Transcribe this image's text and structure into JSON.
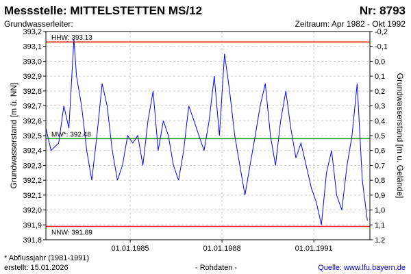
{
  "header": {
    "title": "Messstelle: MITTELSTETTEN MS/12",
    "number": "Nr: 8793",
    "aquifer": "Grundwasserleiter:",
    "period": "Zeitraum: Apr 1982 - Okt 1992"
  },
  "footer": {
    "footnote": "* Abflussjahr (1981-1991)",
    "created": "erstellt:  15.01.2026",
    "raw": "- Rohdaten -",
    "source": "Quelle:  www.lfu.bayern.de"
  },
  "chart_data": {
    "type": "line",
    "title": "",
    "ylabel": "Grundwasserstand [m ü. NN]",
    "y2label": "Grundwasserstand [m u. Gelände]",
    "ylim": [
      391.8,
      393.2
    ],
    "y2lim": [
      -0.2,
      1.2
    ],
    "xlim": [
      "1982-04-01",
      "1992-10-31"
    ],
    "x_ticks": [
      "01.01.1985",
      "01.01.1988",
      "01.01.1991"
    ],
    "y_ticks": [
      "391,8",
      "391,9",
      "392,0",
      "392,1",
      "392,2",
      "392,3",
      "392,4",
      "392,5",
      "392,6",
      "392,7",
      "392,8",
      "392,9",
      "393,0",
      "393,1",
      "393,2"
    ],
    "y2_ticks": [
      "1,2",
      "1,1",
      "1,0",
      "0,9",
      "0,8",
      "0,7",
      "0,6",
      "0,5",
      "0,4",
      "0,3",
      "0,2",
      "0,1",
      "0,0",
      "-0,1",
      "-0,2"
    ],
    "grid": true,
    "reference_lines": [
      {
        "label": "HHW: 393.13",
        "value": 393.13,
        "color": "#ff0000"
      },
      {
        "label": "MW*: 392.48",
        "value": 392.48,
        "color": "#00a000"
      },
      {
        "label": "NNW: 391.89",
        "value": 391.89,
        "color": "#ff0000"
      }
    ],
    "series": [
      {
        "color": "#0000ff",
        "x": [
          "1982-04",
          "1982-06",
          "1982-09",
          "1982-11",
          "1983-01",
          "1983-03",
          "1983-04",
          "1983-06",
          "1983-08",
          "1983-10",
          "1983-12",
          "1984-02",
          "1984-04",
          "1984-06",
          "1984-08",
          "1984-10",
          "1984-12",
          "1985-02",
          "1985-04",
          "1985-06",
          "1985-08",
          "1985-10",
          "1985-12",
          "1986-02",
          "1986-04",
          "1986-06",
          "1986-08",
          "1986-10",
          "1986-12",
          "1987-02",
          "1987-04",
          "1987-06",
          "1987-08",
          "1987-10",
          "1987-12",
          "1988-02",
          "1988-04",
          "1988-06",
          "1988-08",
          "1988-10",
          "1988-12",
          "1989-02",
          "1989-04",
          "1989-06",
          "1989-08",
          "1989-10",
          "1989-12",
          "1990-02",
          "1990-04",
          "1990-06",
          "1990-08",
          "1990-10",
          "1990-12",
          "1991-02",
          "1991-04",
          "1991-06",
          "1991-08",
          "1991-10",
          "1991-12",
          "1992-02",
          "1992-04",
          "1992-06",
          "1992-08",
          "1992-10"
        ],
        "values": [
          392.55,
          392.4,
          392.45,
          392.7,
          392.55,
          393.15,
          392.9,
          392.7,
          392.4,
          392.2,
          392.5,
          392.85,
          392.7,
          392.4,
          392.2,
          392.3,
          392.5,
          392.45,
          392.5,
          392.3,
          392.6,
          392.8,
          392.4,
          392.6,
          392.5,
          392.3,
          392.2,
          392.4,
          392.7,
          392.6,
          392.5,
          392.4,
          392.6,
          392.9,
          392.5,
          393.05,
          392.8,
          392.5,
          392.3,
          392.1,
          392.3,
          392.5,
          392.7,
          392.85,
          392.5,
          392.3,
          392.6,
          392.8,
          392.55,
          392.35,
          392.45,
          392.3,
          392.15,
          392.05,
          391.9,
          392.25,
          392.4,
          392.1,
          392.0,
          392.3,
          392.5,
          392.85,
          392.2,
          391.93
        ]
      }
    ]
  }
}
